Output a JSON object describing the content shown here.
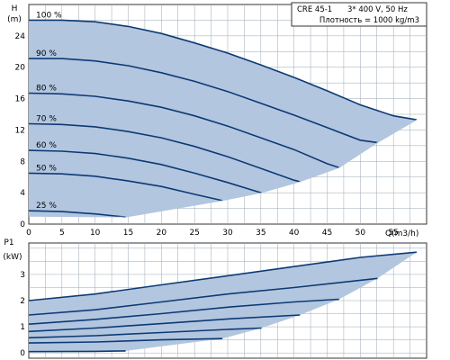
{
  "chart_data": [
    {
      "type": "line",
      "info_box": {
        "model": "CRE 45-1",
        "supply": "3* 400 V, 50 Hz",
        "density": "Плотность = 1000 kg/m3"
      },
      "ylabel": "H",
      "ylabel_unit": "(m)",
      "xlabel": "Q(m3/h)",
      "xlim": [
        0,
        60
      ],
      "ylim": [
        0,
        28
      ],
      "x_ticks": [
        0,
        5,
        10,
        15,
        20,
        25,
        30,
        35,
        40,
        45,
        50,
        55
      ],
      "y_ticks": [
        0,
        4,
        8,
        12,
        16,
        20,
        24
      ],
      "grid": true,
      "series": [
        {
          "name": "100 %",
          "x": [
            0,
            5,
            10,
            15,
            20,
            25,
            30,
            35,
            40,
            45,
            50,
            55,
            58.5
          ],
          "y": [
            26,
            26,
            25.8,
            25.2,
            24.3,
            23.1,
            21.8,
            20.3,
            18.7,
            17.0,
            15.2,
            13.8,
            13.3
          ]
        },
        {
          "name": "90 %",
          "x": [
            0,
            5,
            10,
            15,
            20,
            25,
            30,
            35,
            40,
            45,
            50,
            52.6
          ],
          "y": [
            21.1,
            21.1,
            20.8,
            20.2,
            19.3,
            18.2,
            16.9,
            15.4,
            13.9,
            12.3,
            10.7,
            10.4
          ]
        },
        {
          "name": "80 %",
          "x": [
            0,
            5,
            10,
            15,
            20,
            25,
            30,
            35,
            40,
            45,
            46.8
          ],
          "y": [
            16.7,
            16.6,
            16.3,
            15.7,
            14.9,
            13.8,
            12.5,
            11.0,
            9.5,
            7.7,
            7.2
          ]
        },
        {
          "name": "70 %",
          "x": [
            0,
            5,
            10,
            15,
            20,
            25,
            30,
            35,
            40,
            40.9
          ],
          "y": [
            12.8,
            12.7,
            12.4,
            11.8,
            11.0,
            9.9,
            8.6,
            7.1,
            5.6,
            5.4
          ]
        },
        {
          "name": "60 %",
          "x": [
            0,
            5,
            10,
            15,
            20,
            25,
            30,
            35,
            35.1
          ],
          "y": [
            9.4,
            9.3,
            9.0,
            8.4,
            7.6,
            6.5,
            5.3,
            4.0,
            4.0
          ]
        },
        {
          "name": "50 %",
          "x": [
            0,
            5,
            10,
            15,
            20,
            25,
            29.2
          ],
          "y": [
            6.5,
            6.4,
            6.1,
            5.5,
            4.8,
            3.8,
            3.0
          ]
        },
        {
          "name": "25 %",
          "x": [
            0,
            5,
            10,
            14.6
          ],
          "y": [
            1.7,
            1.6,
            1.3,
            0.9
          ]
        }
      ],
      "hull": [
        [
          0,
          26
        ],
        [
          5,
          26
        ],
        [
          10,
          25.8
        ],
        [
          15,
          25.2
        ],
        [
          20,
          24.3
        ],
        [
          25,
          23.1
        ],
        [
          30,
          21.8
        ],
        [
          35,
          20.3
        ],
        [
          40,
          18.7
        ],
        [
          45,
          17.0
        ],
        [
          50,
          15.2
        ],
        [
          55,
          13.8
        ],
        [
          58.5,
          13.3
        ],
        [
          52.6,
          10.4
        ],
        [
          46.8,
          7.2
        ],
        [
          40.9,
          5.4
        ],
        [
          35.1,
          4.0
        ],
        [
          29.2,
          3.0
        ],
        [
          14.6,
          0.9
        ],
        [
          0,
          1.0
        ]
      ],
      "colors": {
        "fill": "#b3c6df",
        "curve": "#0c3a75",
        "grid": "#9aa8b6",
        "frame": "#333333"
      }
    },
    {
      "type": "line",
      "ylabel": "P1",
      "ylabel_unit": "(kW)",
      "xlim": [
        0,
        60
      ],
      "ylim": [
        -0.2,
        4.2
      ],
      "y_ticks": [
        0,
        1,
        2,
        3
      ],
      "grid": true,
      "series": [
        {
          "name": "100 %",
          "x": [
            0,
            10,
            20,
            30,
            40,
            50,
            58.5
          ],
          "y": [
            2.0,
            2.25,
            2.6,
            2.95,
            3.3,
            3.65,
            3.85
          ]
        },
        {
          "name": "90 %",
          "x": [
            0,
            10,
            20,
            30,
            40,
            52.6
          ],
          "y": [
            1.45,
            1.65,
            1.95,
            2.25,
            2.5,
            2.85
          ]
        },
        {
          "name": "80 %",
          "x": [
            0,
            10,
            20,
            30,
            40,
            46.8
          ],
          "y": [
            1.1,
            1.28,
            1.5,
            1.75,
            1.95,
            2.05
          ]
        },
        {
          "name": "70 %",
          "x": [
            0,
            10,
            20,
            30,
            40.9
          ],
          "y": [
            0.82,
            0.95,
            1.12,
            1.3,
            1.45
          ]
        },
        {
          "name": "60 %",
          "x": [
            0,
            10,
            20,
            30,
            35.1
          ],
          "y": [
            0.58,
            0.66,
            0.78,
            0.9,
            0.95
          ]
        },
        {
          "name": "50 %",
          "x": [
            0,
            10,
            20,
            29.2
          ],
          "y": [
            0.38,
            0.42,
            0.5,
            0.55
          ]
        },
        {
          "name": "25 %",
          "x": [
            0,
            10,
            14.6
          ],
          "y": [
            0.05,
            0.06,
            0.08
          ]
        }
      ],
      "hull": [
        [
          0,
          2.0
        ],
        [
          10,
          2.25
        ],
        [
          20,
          2.6
        ],
        [
          30,
          2.95
        ],
        [
          40,
          3.3
        ],
        [
          50,
          3.65
        ],
        [
          58.5,
          3.85
        ],
        [
          52.6,
          2.85
        ],
        [
          46.8,
          2.05
        ],
        [
          40.9,
          1.45
        ],
        [
          35.1,
          0.95
        ],
        [
          29.2,
          0.55
        ],
        [
          14.6,
          0.08
        ],
        [
          0,
          0.05
        ]
      ],
      "colors": {
        "fill": "#b3c6df",
        "curve": "#0c3a75",
        "grid": "#9aa8b6",
        "frame": "#333333"
      }
    }
  ]
}
